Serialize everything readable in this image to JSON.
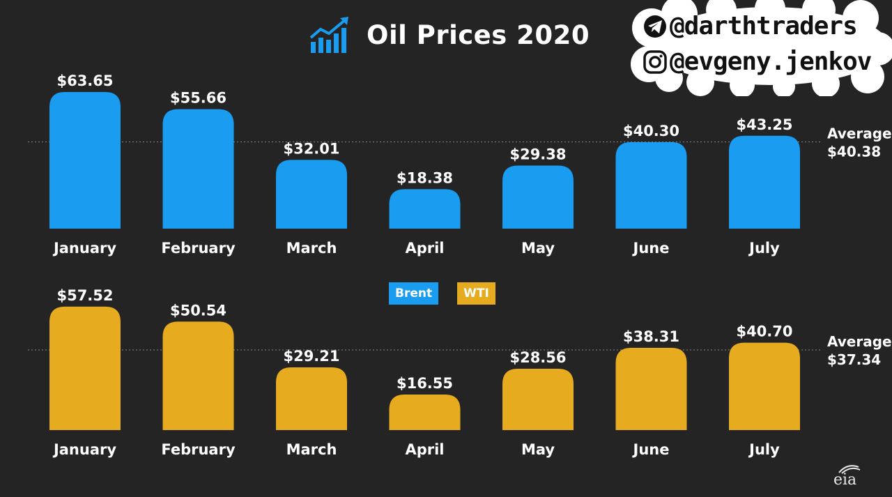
{
  "title": "Oil Prices 2020",
  "social": {
    "telegram": "@darthtraders",
    "instagram": "@evgeny.jenkov",
    "telegram_icon": "telegram-icon",
    "instagram_icon": "instagram-icon"
  },
  "legend": {
    "items": [
      {
        "label": "Brent",
        "color": "#1a9cf0"
      },
      {
        "label": "WTI",
        "color": "#e6ab1f"
      }
    ]
  },
  "source_logo": "eia",
  "chart_data": [
    {
      "type": "bar",
      "series_name": "Brent",
      "color": "#1a9cf0",
      "categories": [
        "January",
        "February",
        "March",
        "April",
        "May",
        "June",
        "July"
      ],
      "values": [
        63.65,
        55.66,
        32.01,
        18.38,
        29.38,
        40.3,
        43.25
      ],
      "value_labels": [
        "$63.65",
        "$55.66",
        "$32.01",
        "$18.38",
        "$29.38",
        "$40.30",
        "$43.25"
      ],
      "average": 40.38,
      "average_label": "Average",
      "average_value_label": "$40.38",
      "ylim": [
        0,
        70
      ]
    },
    {
      "type": "bar",
      "series_name": "WTI",
      "color": "#e6ab1f",
      "categories": [
        "January",
        "February",
        "March",
        "April",
        "May",
        "June",
        "July"
      ],
      "values": [
        57.52,
        50.54,
        29.21,
        16.55,
        28.56,
        38.31,
        40.7
      ],
      "value_labels": [
        "$57.52",
        "$50.54",
        "$29.21",
        "$16.55",
        "$28.56",
        "$38.31",
        "$40.70"
      ],
      "average": 37.34,
      "average_label": "Average",
      "average_value_label": "$37.34",
      "ylim": [
        0,
        70
      ]
    }
  ]
}
